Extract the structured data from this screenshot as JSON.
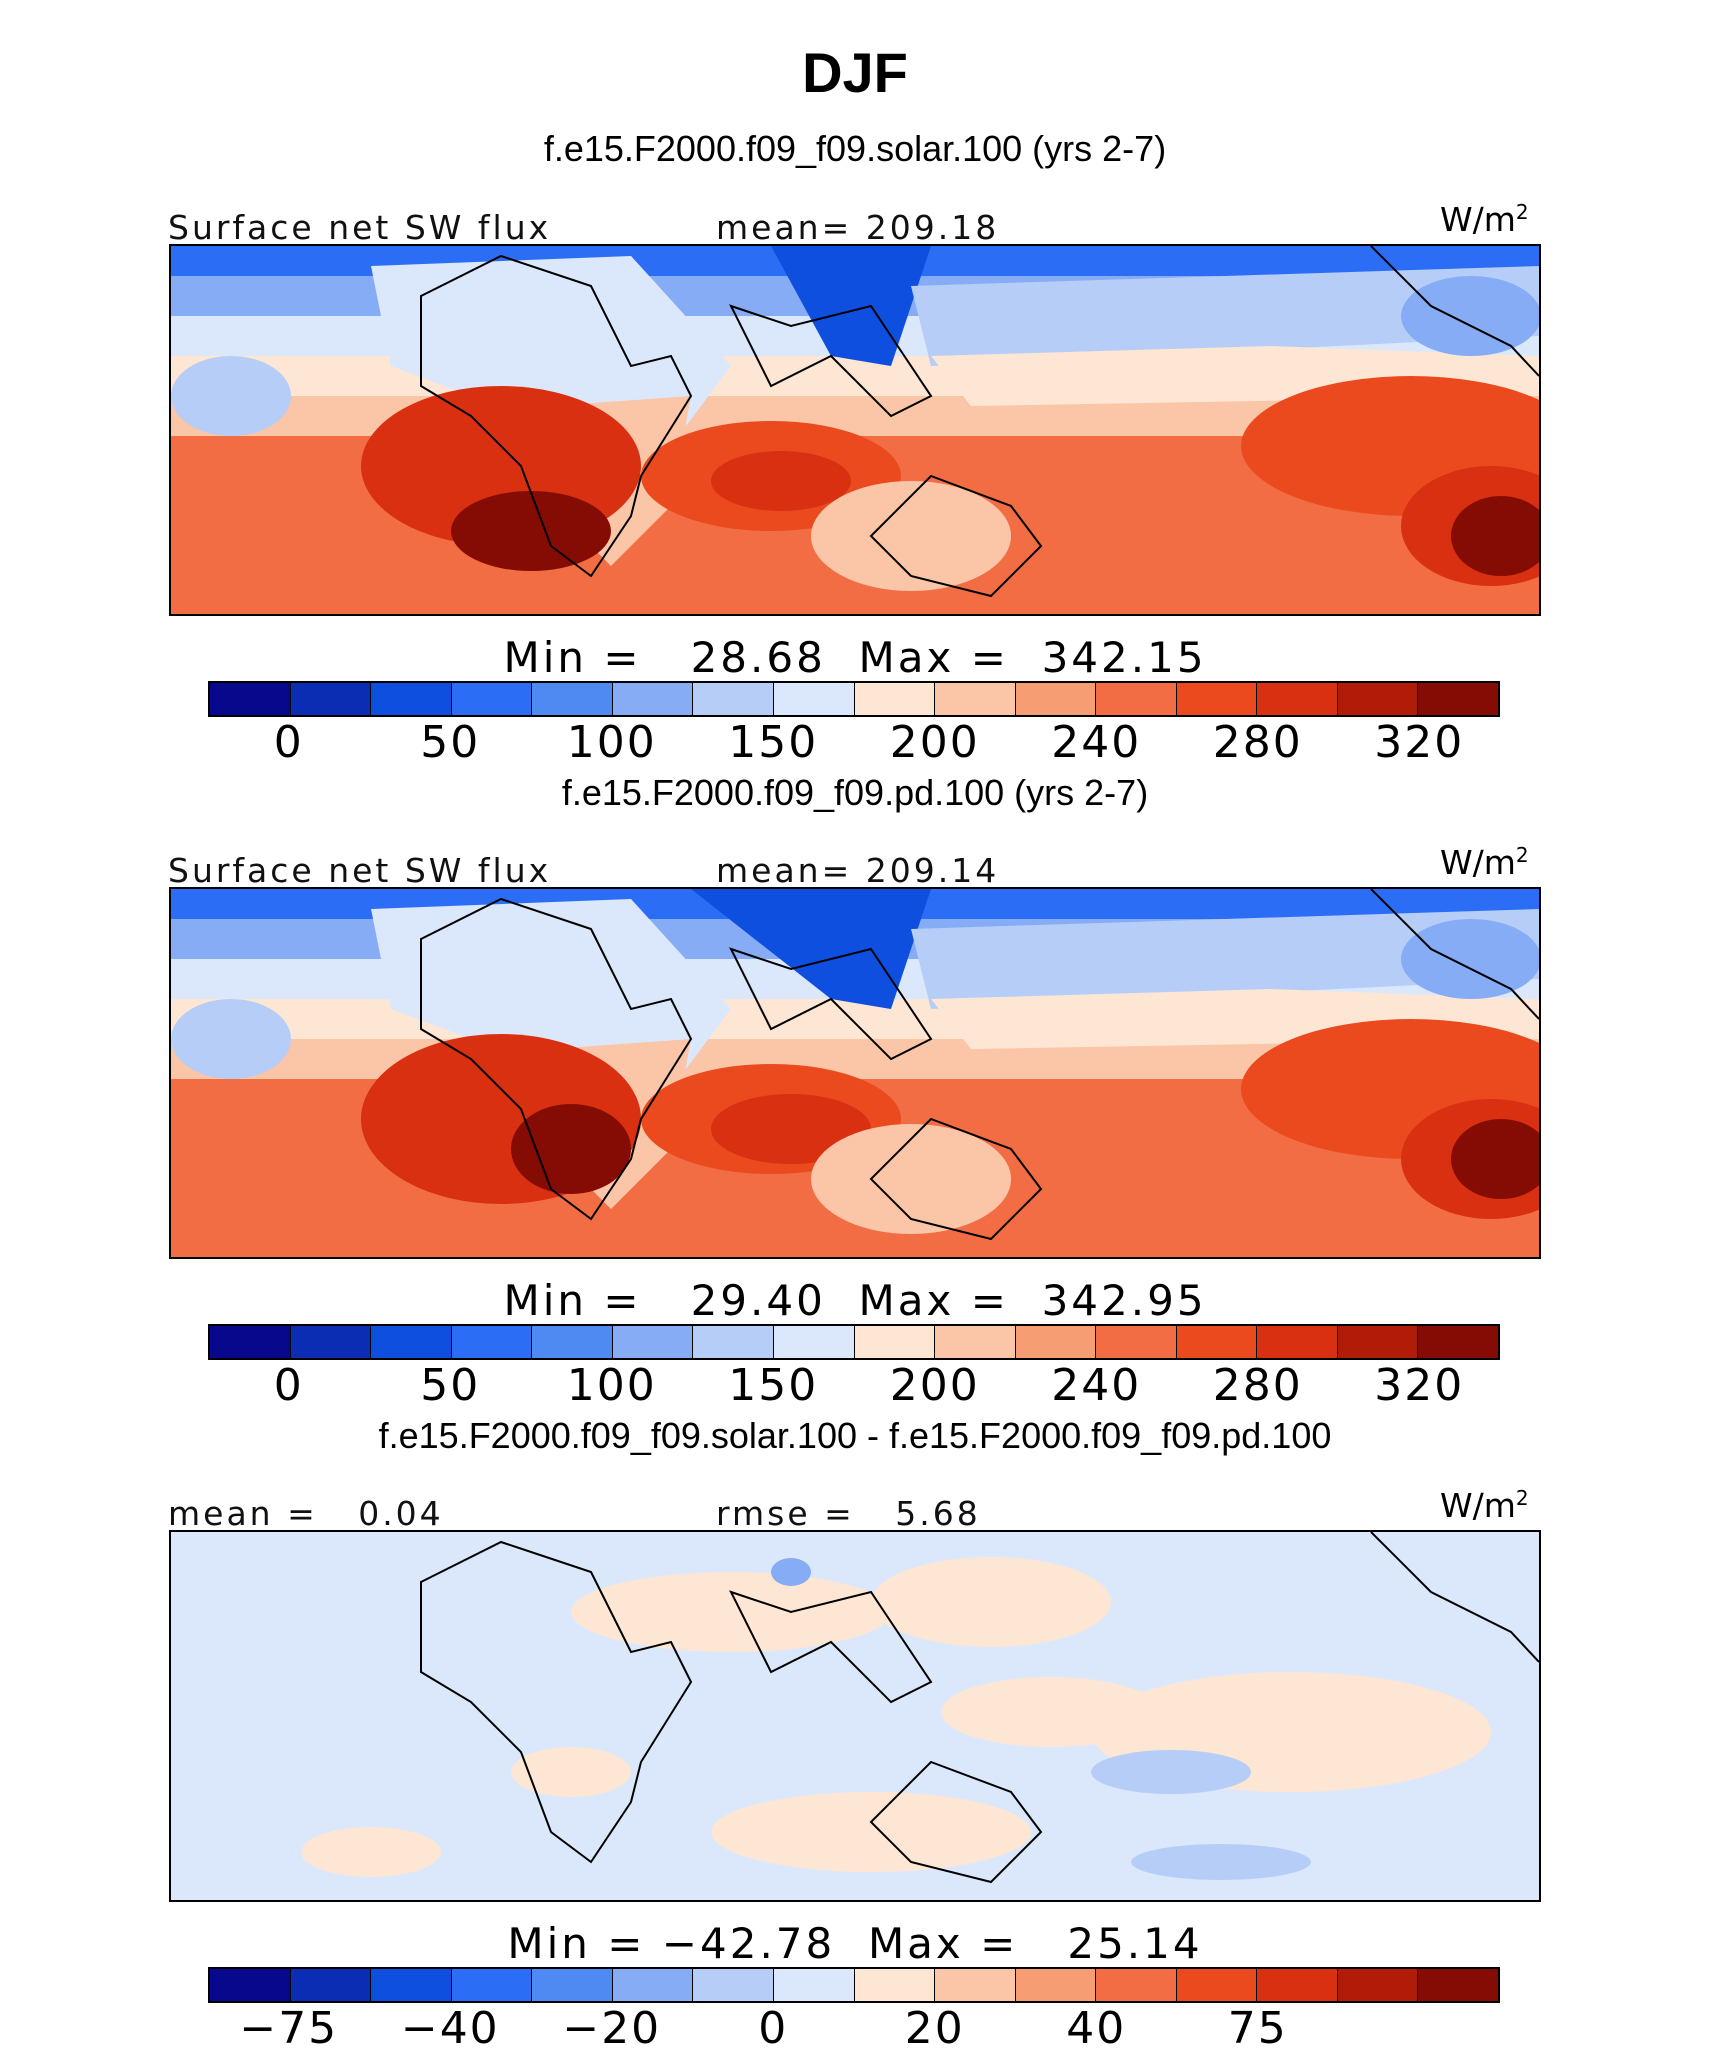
{
  "title": "DJF",
  "panels": [
    {
      "case_title": "f.e15.F2000.f09_f09.solar.100 (yrs 2-7)",
      "left_label": "Surface net SW flux",
      "center_label": "mean= 209.18",
      "units": "W/m",
      "units_exp": "2",
      "minmax": "Min =   28.68  Max =  342.15"
    },
    {
      "case_title": "f.e15.F2000.f09_f09.pd.100 (yrs 2-7)",
      "left_label": "Surface net SW flux",
      "center_label": "mean= 209.14",
      "units": "W/m",
      "units_exp": "2",
      "minmax": "Min =   29.40  Max =  342.95"
    },
    {
      "case_title": "f.e15.F2000.f09_f09.solar.100 - f.e15.F2000.f09_f09.pd.100",
      "left_label": "mean =   0.04",
      "center_label": "rmse =   5.68",
      "units": "W/m",
      "units_exp": "2",
      "minmax": "Min = −42.78  Max =   25.14"
    }
  ],
  "colors": {
    "abs_scale": [
      "#08088c",
      "#0a2db4",
      "#0f4fe0",
      "#2b6ef5",
      "#4f8af2",
      "#86acf5",
      "#b6cdf7",
      "#dbe8fb",
      "#fde6d4",
      "#fbc5a7",
      "#f79d73",
      "#f26d43",
      "#eb4a1f",
      "#d83010",
      "#b01c08",
      "#850c04"
    ],
    "diff_scale": [
      "#08088c",
      "#0a2db4",
      "#0f4fe0",
      "#2b6ef5",
      "#4f8af2",
      "#86acf5",
      "#b6cdf7",
      "#dbe8fb",
      "#fde6d4",
      "#fbc5a7",
      "#f79d73",
      "#f26d43",
      "#eb4a1f",
      "#d83010",
      "#b01c08",
      "#850c04"
    ]
  },
  "chart_data": [
    {
      "type": "heatmap",
      "title": "DJF",
      "subtitle": "f.e15.F2000.f09_f09.solar.100 (yrs 2-7)",
      "variable": "Surface net SW flux",
      "units": "W/m2",
      "mean": 209.18,
      "min": 28.68,
      "max": 342.15,
      "colorbar_ticks": [
        "0",
        "50",
        "100",
        "150",
        "200",
        "240",
        "280",
        "320"
      ],
      "n_colors": 16
    },
    {
      "type": "heatmap",
      "subtitle": "f.e15.F2000.f09_f09.pd.100 (yrs 2-7)",
      "variable": "Surface net SW flux",
      "units": "W/m2",
      "mean": 209.14,
      "min": 29.4,
      "max": 342.95,
      "colorbar_ticks": [
        "0",
        "50",
        "100",
        "150",
        "200",
        "240",
        "280",
        "320"
      ],
      "n_colors": 16
    },
    {
      "type": "heatmap",
      "subtitle": "f.e15.F2000.f09_f09.solar.100 - f.e15.F2000.f09_f09.pd.100",
      "units": "W/m2",
      "mean": 0.04,
      "rmse": 5.68,
      "min": -42.78,
      "max": 25.14,
      "colorbar_ticks": [
        "−75",
        "−40",
        "−20",
        "0",
        "20",
        "40",
        "75"
      ],
      "n_colors": 16
    }
  ]
}
